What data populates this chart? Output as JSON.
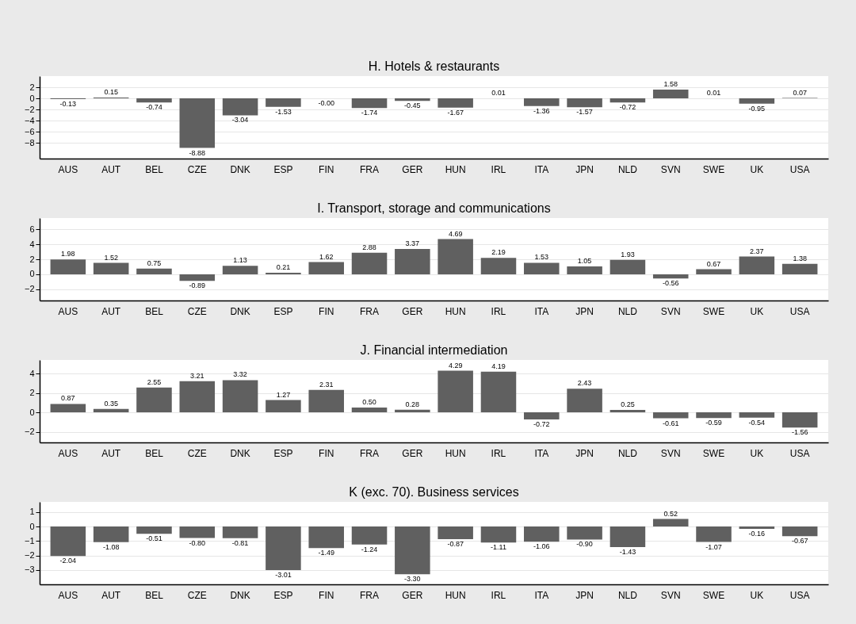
{
  "chart_data": [
    {
      "type": "bar",
      "title": "H. Hotels & restaurants",
      "categories": [
        "AUS",
        "AUT",
        "BEL",
        "CZE",
        "DNK",
        "ESP",
        "FIN",
        "FRA",
        "GER",
        "HUN",
        "IRL",
        "ITA",
        "JPN",
        "NLD",
        "SVN",
        "SWE",
        "UK",
        "USA"
      ],
      "color": "#606060",
      "grid": "y",
      "ylim": [
        -10.8,
        4
      ],
      "yticks": [
        -8,
        -6,
        -4,
        -2,
        0,
        2
      ],
      "values": [
        -0.13,
        0.15,
        -0.74,
        -8.88,
        -3.04,
        -1.53,
        0,
        -1.74,
        -0.45,
        -1.67,
        0.01,
        -1.36,
        -1.57,
        -0.72,
        1.58,
        0.01,
        -0.95,
        0.07
      ],
      "value_labels": [
        "-0.13",
        "0.15",
        "-0.74",
        "-8.88",
        "-3.04",
        "-1.53",
        "-0.00",
        "-1.74",
        "-0.45",
        "-1.67",
        "0.01",
        "-1.36",
        "-1.57",
        "-0.72",
        "1.58",
        "0.01",
        "-0.95",
        "0.07"
      ]
    },
    {
      "type": "bar",
      "title": "I. Transport, storage and communications",
      "categories": [
        "AUS",
        "AUT",
        "BEL",
        "CZE",
        "DNK",
        "ESP",
        "FIN",
        "FRA",
        "GER",
        "HUN",
        "IRL",
        "ITA",
        "JPN",
        "NLD",
        "SVN",
        "SWE",
        "UK",
        "USA"
      ],
      "color": "#606060",
      "grid": "y",
      "ylim": [
        -3.5,
        7.5
      ],
      "yticks": [
        -2,
        0,
        2,
        4,
        6
      ],
      "values": [
        1.98,
        1.52,
        0.75,
        -0.89,
        1.13,
        0.21,
        1.62,
        2.88,
        3.37,
        4.69,
        2.19,
        1.53,
        1.05,
        1.93,
        -0.56,
        0.67,
        2.37,
        1.38
      ],
      "data_labels": true
    },
    {
      "type": "bar",
      "title": "J. Financial intermediation",
      "categories": [
        "AUS",
        "AUT",
        "BEL",
        "CZE",
        "DNK",
        "ESP",
        "FIN",
        "FRA",
        "GER",
        "HUN",
        "IRL",
        "ITA",
        "JPN",
        "NLD",
        "SVN",
        "SWE",
        "UK",
        "USA"
      ],
      "color": "#606060",
      "grid": "y",
      "ylim": [
        -3.1,
        5.4
      ],
      "yticks": [
        -2,
        0,
        2,
        4
      ],
      "values": [
        0.87,
        0.35,
        2.55,
        3.21,
        3.32,
        1.27,
        2.31,
        0.5,
        0.28,
        4.29,
        4.19,
        -0.72,
        2.43,
        0.25,
        -0.61,
        -0.59,
        -0.54,
        -1.56
      ],
      "value_labels": [
        "0.87",
        "0.35",
        "2.55",
        "3.21",
        "3.32",
        "1.27",
        "2.31",
        "0.50",
        "0.28",
        "4.29",
        "4.19",
        "-0.72",
        "2.43",
        "0.25",
        "-0.61",
        "-0.59",
        "-0.54",
        "-1.56"
      ]
    },
    {
      "type": "bar",
      "title": "K (exc. 70). Business services",
      "categories": [
        "AUS",
        "AUT",
        "BEL",
        "CZE",
        "DNK",
        "ESP",
        "FIN",
        "FRA",
        "GER",
        "HUN",
        "IRL",
        "ITA",
        "JPN",
        "NLD",
        "SVN",
        "SWE",
        "UK",
        "USA"
      ],
      "color": "#606060",
      "grid": "y",
      "ylim": [
        -4,
        1.7
      ],
      "yticks": [
        -3,
        -2,
        -1,
        0,
        1
      ],
      "values": [
        -2.04,
        -1.08,
        -0.51,
        -0.8,
        -0.81,
        -3.01,
        -1.49,
        -1.24,
        -3.3,
        -0.87,
        -1.11,
        -1.06,
        -0.9,
        -1.43,
        0.52,
        -1.07,
        -0.16,
        -0.67
      ],
      "value_labels": [
        "-2.04",
        "-1.08",
        "-0.51",
        "-0.80",
        "-0.81",
        "-3.01",
        "-1.49",
        "-1.24",
        "-3.30",
        "-0.87",
        "-1.11",
        "-1.06",
        "-0.90",
        "-1.43",
        "0.52",
        "-1.07",
        "-0.16",
        "-0.67"
      ]
    }
  ]
}
